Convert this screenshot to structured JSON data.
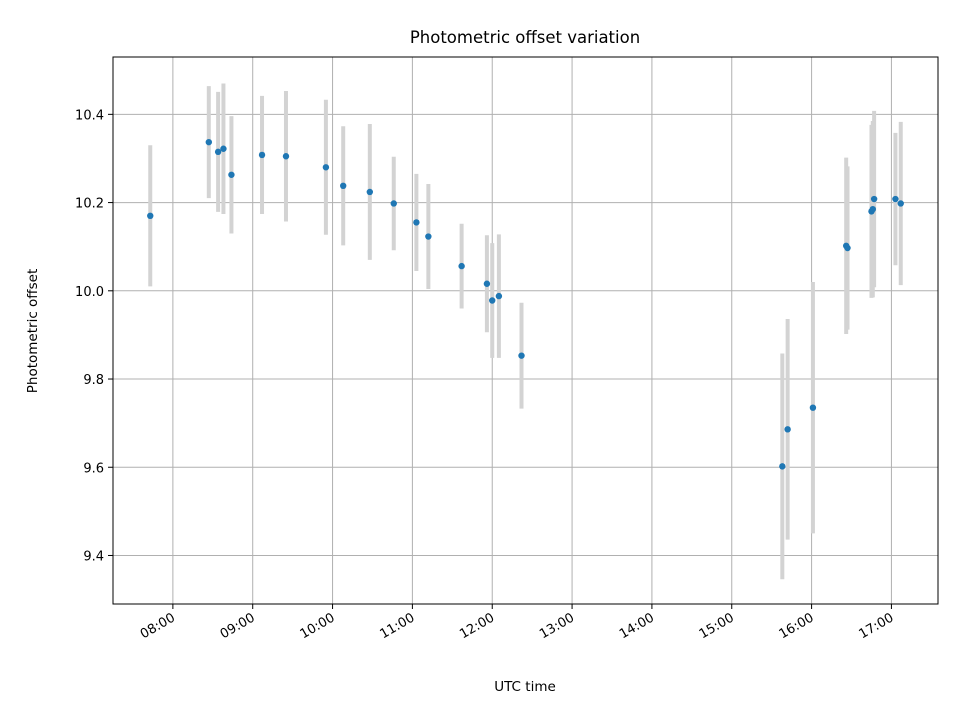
{
  "chart_data": {
    "type": "scatter",
    "title": "Photometric offset variation",
    "xlabel": "UTC time",
    "ylabel": "Photometric offset",
    "x_ticks": [
      "08:00",
      "09:00",
      "10:00",
      "11:00",
      "12:00",
      "13:00",
      "14:00",
      "15:00",
      "16:00",
      "17:00"
    ],
    "y_ticks": [
      "9.4",
      "9.6",
      "9.8",
      "10.0",
      "10.2",
      "10.4"
    ],
    "xlim": [
      "07:15",
      "17:35"
    ],
    "ylim": [
      9.29,
      10.53
    ],
    "grid": true,
    "colors": {
      "point": "#1f77b4",
      "errorbar": "#d3d3d3",
      "grid": "#b0b0b0"
    },
    "points": [
      {
        "time": "07:43",
        "y": 10.17,
        "err": 0.16
      },
      {
        "time": "08:27",
        "y": 10.337,
        "err": 0.127
      },
      {
        "time": "08:34",
        "y": 10.315,
        "err": 0.136
      },
      {
        "time": "08:38",
        "y": 10.322,
        "err": 0.148
      },
      {
        "time": "08:44",
        "y": 10.263,
        "err": 0.133
      },
      {
        "time": "09:07",
        "y": 10.308,
        "err": 0.134
      },
      {
        "time": "09:25",
        "y": 10.305,
        "err": 0.148
      },
      {
        "time": "09:55",
        "y": 10.28,
        "err": 0.153
      },
      {
        "time": "10:08",
        "y": 10.238,
        "err": 0.135
      },
      {
        "time": "10:28",
        "y": 10.224,
        "err": 0.154
      },
      {
        "time": "10:46",
        "y": 10.198,
        "err": 0.106
      },
      {
        "time": "11:03",
        "y": 10.155,
        "err": 0.11
      },
      {
        "time": "11:12",
        "y": 10.123,
        "err": 0.119
      },
      {
        "time": "11:37",
        "y": 10.056,
        "err": 0.096
      },
      {
        "time": "11:56",
        "y": 10.016,
        "err": 0.11
      },
      {
        "time": "12:00",
        "y": 9.978,
        "err": 0.13
      },
      {
        "time": "12:05",
        "y": 9.988,
        "err": 0.14
      },
      {
        "time": "12:22",
        "y": 9.853,
        "err": 0.12
      },
      {
        "time": "15:38",
        "y": 9.602,
        "err": 0.256
      },
      {
        "time": "15:42",
        "y": 9.686,
        "err": 0.25
      },
      {
        "time": "16:01",
        "y": 9.735,
        "err": 0.285
      },
      {
        "time": "16:26",
        "y": 10.102,
        "err": 0.2
      },
      {
        "time": "16:27",
        "y": 10.097,
        "err": 0.185
      },
      {
        "time": "16:45",
        "y": 10.18,
        "err": 0.196
      },
      {
        "time": "16:46",
        "y": 10.185,
        "err": 0.2
      },
      {
        "time": "16:47",
        "y": 10.208,
        "err": 0.2
      },
      {
        "time": "17:03",
        "y": 10.208,
        "err": 0.15
      },
      {
        "time": "17:07",
        "y": 10.198,
        "err": 0.185
      }
    ]
  }
}
